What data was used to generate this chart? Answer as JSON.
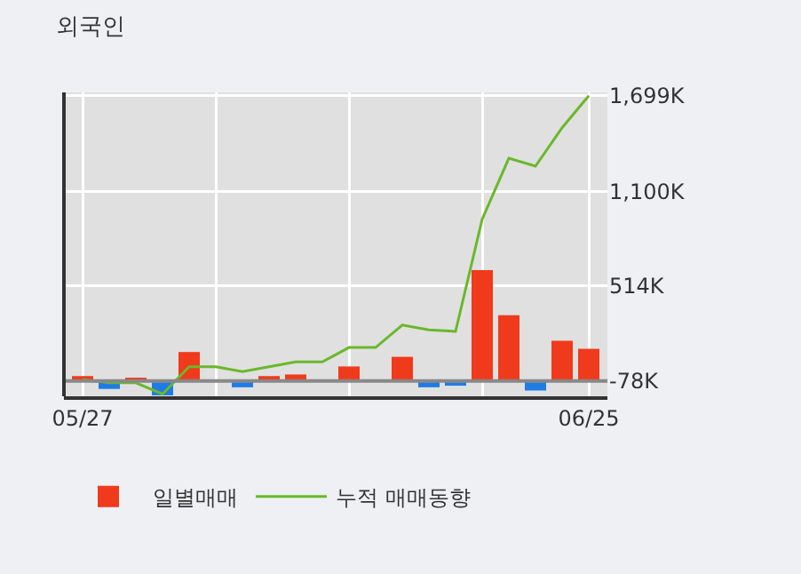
{
  "chart_data": {
    "type": "bar",
    "title": "외국인",
    "categories": [
      "05/27",
      null,
      null,
      null,
      null,
      null,
      null,
      null,
      null,
      null,
      null,
      null,
      null,
      null,
      null,
      null,
      null,
      null,
      null,
      "06/25"
    ],
    "series": [
      {
        "name": "일별매매",
        "base": [
          -78,
          -78,
          -78,
          -78,
          -78,
          null,
          -78,
          -78,
          -78,
          null,
          -78,
          null,
          -78,
          -78,
          -78,
          -78,
          -78,
          -78,
          -78,
          -78
        ],
        "colors": [
          "#f03a1c",
          "#1e7ce6",
          "#f03a1c",
          "#1e7ce6",
          "#f03a1c",
          "#f03a1c",
          "#1e7ce6",
          "#f03a1c",
          "#f03a1c",
          "#f03a1c",
          "#f03a1c",
          "#f03a1c",
          "#f03a1c",
          "#1e7ce6",
          "#1e7ce6",
          "#f03a1c",
          "#f03a1c",
          "#1e7ce6",
          "#f03a1c",
          "#f03a1c"
        ],
        "values": [
          30,
          -50,
          20,
          -90,
          180,
          null,
          -40,
          30,
          40,
          null,
          90,
          null,
          150,
          -40,
          -30,
          690,
          410,
          -60,
          250,
          200
        ]
      },
      {
        "type": "line",
        "name": "누적 매매동향",
        "color": "#6ab82a",
        "values": [
          -70,
          -90,
          -90,
          -160,
          10,
          10,
          -20,
          10,
          40,
          40,
          130,
          130,
          270,
          240,
          230,
          930,
          1310,
          1260,
          1500,
          1699
        ]
      }
    ],
    "ylim": [
      -174,
      1720
    ],
    "yticks": [
      {
        "value": -78,
        "label": "-78K"
      },
      {
        "value": 514,
        "label": "514K"
      },
      {
        "value": 1100,
        "label": "1,100K"
      },
      {
        "value": 1699,
        "label": "1,699K"
      }
    ],
    "ref_lines": [
      {
        "axis": "y",
        "value": -78,
        "color": "#888888"
      }
    ],
    "grid": true,
    "legend": "bottom",
    "marker": "none",
    "line_style": "solid"
  }
}
